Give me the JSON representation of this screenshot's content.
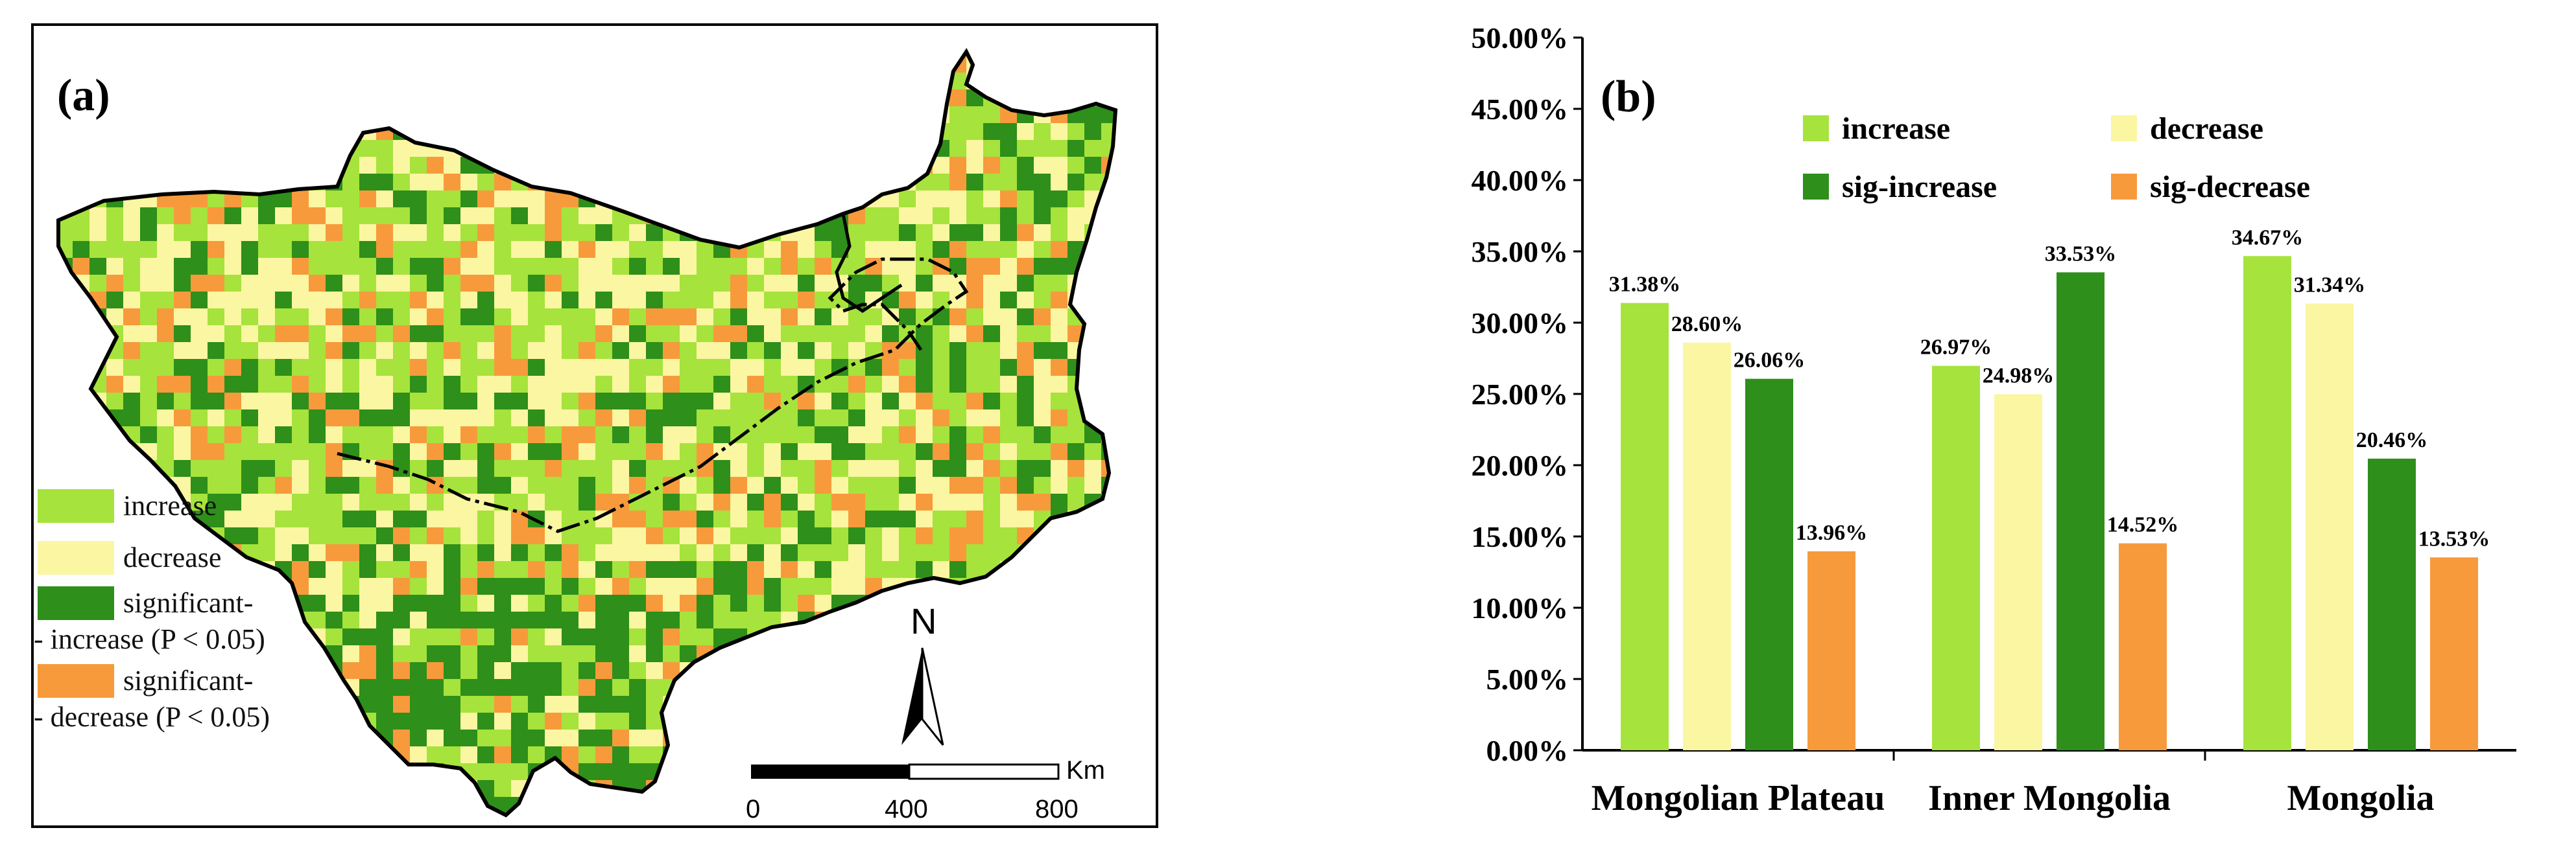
{
  "panel_a": {
    "label": "(a)",
    "north": "N",
    "scale_unit": "Km",
    "scale_ticks": [
      "0",
      "400",
      "800"
    ],
    "legend": [
      {
        "label": "increase",
        "color": "#a6e33c"
      },
      {
        "label": "decrease",
        "color": "#fbf6a2"
      },
      {
        "label": "significant-",
        "label2": "- increase (P < 0.05)",
        "color": "#2e8f1a"
      },
      {
        "label": "significant-",
        "label2": "- decrease (P < 0.05)",
        "color": "#f79a3c"
      }
    ]
  },
  "chart_data": {
    "type": "bar",
    "panel_label": "(b)",
    "categories": [
      "Mongolian Plateau",
      "Inner Mongolia",
      "Mongolia"
    ],
    "series": [
      {
        "name": "increase",
        "color": "#a6e33c",
        "values": [
          31.38,
          26.97,
          34.67
        ],
        "labels": [
          "31.38%",
          "26.97%",
          "34.67%"
        ]
      },
      {
        "name": "decrease",
        "color": "#fbf6a2",
        "values": [
          28.6,
          24.98,
          31.34
        ],
        "labels": [
          "28.60%",
          "24.98%",
          "31.34%"
        ]
      },
      {
        "name": "sig-increase",
        "color": "#2e8f1a",
        "values": [
          26.06,
          33.53,
          20.46
        ],
        "labels": [
          "26.06%",
          "33.53%",
          "20.46%"
        ]
      },
      {
        "name": "sig-decrease",
        "color": "#f79a3c",
        "values": [
          13.96,
          14.52,
          13.53
        ],
        "labels": [
          "13.96%",
          "14.52%",
          "13.53%"
        ]
      }
    ],
    "ylim": [
      0,
      50
    ],
    "yticks": [
      "0.00%",
      "5.00%",
      "10.00%",
      "15.00%",
      "20.00%",
      "25.00%",
      "30.00%",
      "35.00%",
      "40.00%",
      "45.00%",
      "50.00%"
    ],
    "xlabel": "",
    "ylabel": "",
    "legend_position": "top-center"
  }
}
